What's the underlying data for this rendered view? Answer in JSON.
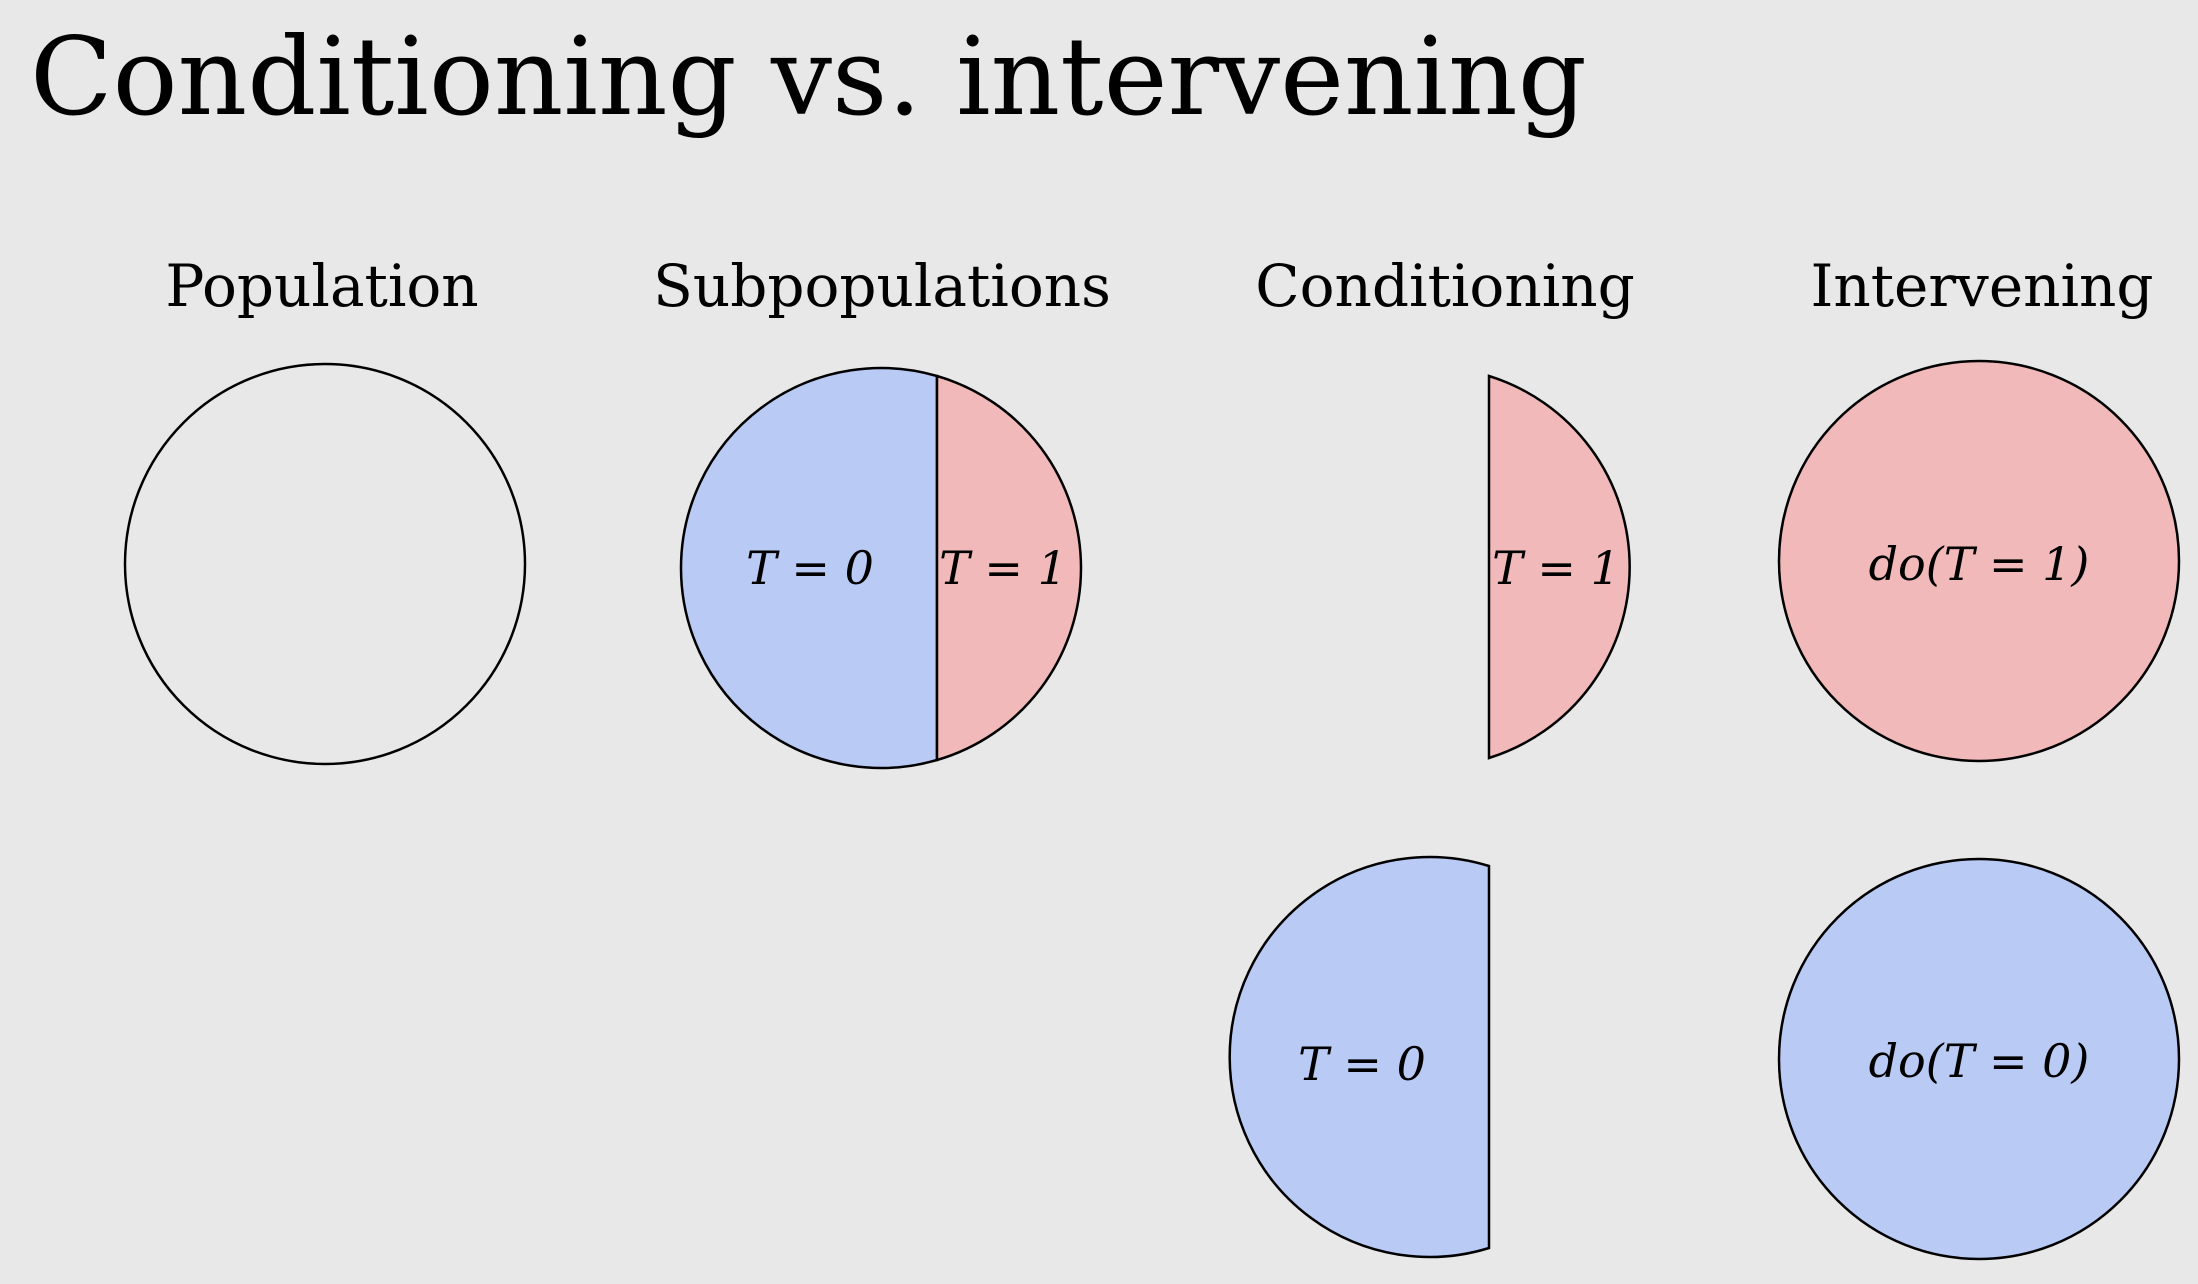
{
  "title": "Conditioning vs. intervening",
  "columns": {
    "population": "Population",
    "subpopulations": "Subpopulations",
    "conditioning": "Conditioning",
    "intervening": "Intervening"
  },
  "labels": {
    "subpop_t0": "T = 0",
    "subpop_t1": "T = 1",
    "cond_t1": "T = 1",
    "cond_t0": "T = 0",
    "do_t1": "do(T = 1)",
    "do_t0": "do(T = 0)"
  },
  "colors": {
    "background": "#e8e8e8",
    "treated_red": "#f1b9b9",
    "control_blue": "#b9caf5",
    "outline": "#000000"
  }
}
